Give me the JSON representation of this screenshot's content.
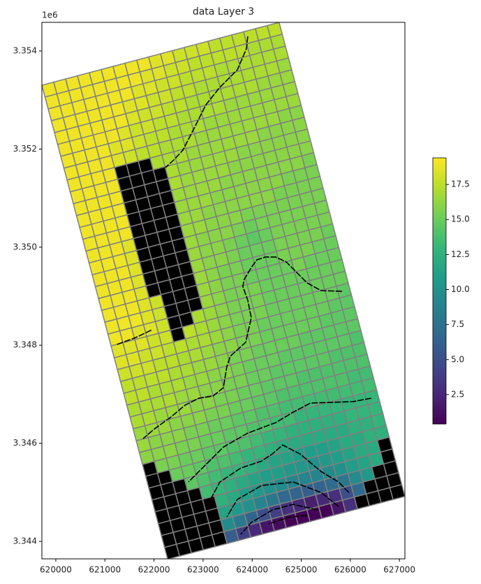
{
  "chart_data": {
    "type": "grid-map",
    "title": "data Layer 3",
    "y_offset_label": "1e6",
    "colormap": "viridis",
    "clim": [
      0.4,
      19.4
    ],
    "cell_edge_color": "#808080",
    "inactive_color": "#000000",
    "line_color": "#000000",
    "xlim": [
      619716,
      627112
    ],
    "ylim": [
      3343644,
      3354584
    ],
    "xticks": [
      620000,
      621000,
      622000,
      623000,
      624000,
      625000,
      626000,
      627000
    ],
    "yticks": [
      {
        "value": 3344000,
        "label": "3.344"
      },
      {
        "value": 3346000,
        "label": "3.346"
      },
      {
        "value": 3348000,
        "label": "3.348"
      },
      {
        "value": 3350000,
        "label": "3.350"
      },
      {
        "value": 3352000,
        "label": "3.352"
      },
      {
        "value": 3354000,
        "label": "3.354"
      }
    ],
    "colorbar_ticks": [
      2.5,
      {
        "value": 5,
        "label": "5.0"
      },
      7.5,
      {
        "value": 10,
        "label": "10.0"
      },
      12.5,
      {
        "value": 15,
        "label": "15.0"
      },
      17.5
    ],
    "model_grid": {
      "origin": [
        619716,
        3353302
      ],
      "angle": 14.85,
      "cell_size": 250
    },
    "values": [
      [
        19,
        19,
        19,
        19,
        19,
        19,
        19,
        19,
        19,
        18.5,
        18.5,
        18,
        18,
        18,
        17.5,
        17.5,
        17.5,
        17.5,
        17.5,
        17.5
      ],
      [
        19,
        19,
        19,
        19,
        19,
        19,
        19,
        19,
        18.5,
        18.5,
        18,
        18,
        17.5,
        17.5,
        17.5,
        17.5,
        17.5,
        17,
        17,
        17
      ],
      [
        19,
        19,
        19,
        19,
        19,
        19,
        19,
        18.5,
        18.5,
        18,
        18,
        17.5,
        17.5,
        17.5,
        17,
        17,
        17,
        17,
        17,
        17
      ],
      [
        19,
        19,
        19,
        19,
        19,
        19,
        18.5,
        18.5,
        18,
        18,
        17.5,
        17.5,
        17,
        17,
        17,
        17,
        17,
        17,
        17,
        16.5
      ],
      [
        19,
        19,
        19,
        19,
        19,
        19,
        18.5,
        18,
        18,
        17.5,
        17.5,
        17,
        17,
        17,
        17,
        17,
        17,
        16.5,
        16.5,
        16.5
      ],
      [
        19,
        19,
        19,
        19,
        19,
        18.5,
        18,
        18,
        17.5,
        17.5,
        17,
        17,
        17,
        17,
        16.5,
        16.5,
        16.5,
        16.5,
        16.5,
        16.5
      ],
      [
        19,
        19,
        19,
        19,
        18.5,
        18.5,
        18,
        17.5,
        17.5,
        17,
        17,
        17,
        16.5,
        16.5,
        16.5,
        16.5,
        16.5,
        16.5,
        16.5,
        16.5
      ],
      [
        19,
        19,
        19,
        19,
        18.5,
        18,
        17.5,
        17.5,
        17,
        17,
        17,
        16.5,
        16.5,
        16.5,
        16.5,
        16.5,
        16.5,
        16.5,
        16,
        16
      ],
      [
        19,
        19,
        19,
        19,
        null,
        null,
        null,
        17,
        17,
        17,
        16.5,
        16.5,
        16.5,
        16.5,
        16.5,
        16.5,
        16,
        16,
        16,
        16
      ],
      [
        19,
        19,
        19,
        19,
        null,
        null,
        null,
        null,
        17,
        16.5,
        16.5,
        16.5,
        16.5,
        16.5,
        16,
        16,
        16,
        16,
        16,
        16
      ],
      [
        19,
        19,
        19,
        19,
        null,
        null,
        null,
        null,
        17,
        16.5,
        16.5,
        16.5,
        16.5,
        16,
        16,
        16,
        16,
        16,
        16,
        16
      ],
      [
        19,
        19,
        19,
        19,
        null,
        null,
        null,
        null,
        16.5,
        16.5,
        16.5,
        16.5,
        16,
        16,
        16,
        16,
        16,
        16,
        16,
        15.5
      ],
      [
        19,
        19,
        19,
        19,
        null,
        null,
        null,
        null,
        16.5,
        16.5,
        16.5,
        16,
        16,
        16,
        16,
        16,
        16,
        15.5,
        15.5,
        15.5
      ],
      [
        19,
        19,
        19,
        19,
        null,
        null,
        null,
        null,
        16.5,
        16.5,
        16,
        16,
        16,
        16,
        16,
        16,
        15.5,
        15.5,
        15.5,
        15.5
      ],
      [
        19,
        19,
        19,
        18.5,
        null,
        null,
        null,
        null,
        16.5,
        16.5,
        16,
        16,
        16,
        15.5,
        15.5,
        15.5,
        15.5,
        15.5,
        15.5,
        15.5
      ],
      [
        19,
        19,
        19,
        18.5,
        null,
        null,
        null,
        null,
        16.5,
        16,
        16,
        16,
        15.5,
        15,
        15.5,
        15.5,
        15.5,
        15.5,
        15.5,
        15.5
      ],
      [
        19,
        19,
        19,
        18.5,
        null,
        null,
        null,
        null,
        16.5,
        16,
        16,
        15.5,
        15,
        14.5,
        15,
        15.5,
        15.5,
        15.5,
        15.5,
        15.5
      ],
      [
        19,
        19,
        19,
        18.5,
        null,
        null,
        null,
        null,
        16.5,
        16,
        16,
        15.5,
        15,
        15,
        15,
        15.5,
        15.5,
        15.5,
        15.5,
        15
      ],
      [
        19,
        19,
        19,
        18.5,
        null,
        null,
        null,
        null,
        16.5,
        16,
        15.5,
        15.5,
        15,
        15,
        15,
        15.5,
        15.5,
        15.5,
        15,
        15
      ],
      [
        19,
        19,
        19,
        18.5,
        18,
        null,
        null,
        null,
        16.5,
        16,
        15.5,
        15.5,
        15,
        15,
        15,
        15,
        15.5,
        15,
        15,
        15
      ],
      [
        19,
        19,
        19,
        18.5,
        18,
        null,
        null,
        null,
        16.5,
        16,
        15.5,
        15.5,
        15.5,
        15,
        15,
        15,
        15,
        15,
        15,
        15
      ],
      [
        19,
        19,
        18.5,
        18.5,
        18,
        null,
        null,
        17,
        16.5,
        16,
        15.5,
        15.5,
        15.5,
        15,
        15,
        15,
        15,
        15,
        15,
        15
      ],
      [
        18.5,
        18.5,
        18.5,
        18,
        18,
        null,
        17.5,
        17,
        16.5,
        16,
        15.5,
        15.5,
        15.5,
        15,
        15,
        15,
        15,
        15,
        15,
        14.5
      ],
      [
        18.5,
        18.5,
        18,
        18,
        17.5,
        17.5,
        17,
        17,
        16.5,
        16,
        15.5,
        15.5,
        15,
        15,
        15,
        15,
        15,
        15,
        14.5,
        14.5
      ],
      [
        18,
        18,
        18,
        17.5,
        17.5,
        17,
        17,
        16.5,
        16,
        16,
        15.5,
        15.5,
        15,
        15,
        15,
        15,
        15,
        14.5,
        14.5,
        14.5
      ],
      [
        17.5,
        17.5,
        17.5,
        17.5,
        17,
        17,
        16.5,
        16.5,
        16,
        15.5,
        15.5,
        15,
        15,
        15,
        15,
        14.5,
        14.5,
        14.5,
        14.5,
        14.5
      ],
      [
        17.5,
        17.5,
        17,
        17,
        17,
        16.5,
        16.5,
        16,
        16,
        15.5,
        15,
        15,
        15,
        14.5,
        14.5,
        14.5,
        14.5,
        14.5,
        14.5,
        14
      ],
      [
        17,
        17,
        17,
        17,
        16.5,
        16.5,
        16,
        16,
        15.5,
        15.5,
        15,
        15,
        14.5,
        14.5,
        14.5,
        14.5,
        14.5,
        14,
        14,
        14
      ],
      [
        17,
        17,
        16.5,
        16.5,
        16.5,
        16,
        16,
        15.5,
        15.5,
        15,
        15,
        14.5,
        14.5,
        14.5,
        14,
        14,
        14,
        14,
        14,
        14
      ],
      [
        16.5,
        16.5,
        16.5,
        16,
        16,
        16,
        15.5,
        15.5,
        15,
        15,
        14.5,
        14.5,
        14,
        14,
        14,
        14,
        14,
        14,
        13.5,
        13.5
      ],
      [
        16.5,
        16,
        16,
        16,
        15.5,
        15.5,
        15,
        15,
        14.5,
        14.5,
        14,
        14,
        13.5,
        13.5,
        13.5,
        13.5,
        13.5,
        13.5,
        13.5,
        13.5
      ],
      [
        16,
        16,
        16,
        15.5,
        15.5,
        15,
        15,
        14.5,
        14.5,
        14,
        14,
        13.5,
        13.5,
        13,
        13,
        13,
        13,
        13,
        13,
        13
      ],
      [
        null,
        15.5,
        15.5,
        15,
        15,
        14.5,
        14.5,
        14,
        14,
        13.5,
        13,
        13,
        12.5,
        12.5,
        12.5,
        12.5,
        12.5,
        13,
        13,
        13
      ],
      [
        null,
        null,
        15,
        15,
        14.5,
        14,
        14,
        13.5,
        13,
        13,
        12.5,
        12,
        12,
        12,
        12,
        12,
        12,
        12.5,
        12.5,
        13
      ],
      [
        null,
        null,
        null,
        14.5,
        14,
        13.5,
        13,
        13,
        12.5,
        12,
        11.5,
        11.5,
        11,
        11,
        11,
        11.5,
        12,
        12,
        12.5,
        12.5
      ],
      [
        null,
        null,
        null,
        null,
        13.5,
        13,
        12.5,
        12,
        11.5,
        11,
        11,
        10.5,
        10.5,
        10,
        10.5,
        11,
        11.5,
        12,
        12,
        null
      ],
      [
        null,
        null,
        null,
        null,
        null,
        12.5,
        12,
        11,
        10.5,
        10,
        9.5,
        9,
        9,
        9,
        9.5,
        10,
        11,
        11.5,
        12,
        null
      ],
      [
        null,
        null,
        null,
        null,
        null,
        11.5,
        10.5,
        10,
        9,
        8,
        7,
        6.5,
        6,
        6.5,
        7,
        8,
        9.5,
        10.5,
        null,
        null
      ],
      [
        null,
        null,
        null,
        null,
        null,
        9.5,
        8,
        6.5,
        5,
        4,
        3,
        2.5,
        2,
        2.5,
        3,
        5,
        7,
        null,
        null,
        null
      ],
      [
        null,
        null,
        null,
        null,
        null,
        6,
        4,
        2.5,
        1.5,
        1,
        0.5,
        0.5,
        0.5,
        0.5,
        1.5,
        3,
        null,
        null,
        null,
        null
      ]
    ],
    "lines": [
      {
        "x": [
          623911,
          623882,
          623697,
          623342,
          623057,
          622844,
          622588,
          622417,
          622233
        ],
        "y": [
          3354299,
          3354043,
          3353615,
          3353259,
          3352903,
          3352476,
          3351977,
          3351792,
          3351621
        ]
      },
      {
        "x": [
          621251,
          621635,
          621962
        ],
        "y": [
          3348017,
          3348160,
          3348316
        ]
      },
      {
        "x": [
          625830,
          625404,
          625119,
          624906,
          624693,
          624479,
          624266,
          624095,
          623982,
          623839,
          623810,
          623911,
          623982,
          623868,
          623555,
          623484,
          623413,
          623200,
          622915,
          622631,
          622346,
          621991,
          621778
        ],
        "y": [
          3349100,
          3349114,
          3349271,
          3349485,
          3349699,
          3349798,
          3349798,
          3349741,
          3349585,
          3349343,
          3349200,
          3348916,
          3348559,
          3348060,
          3347776,
          3347562,
          3347134,
          3346963,
          3346920,
          3346778,
          3346536,
          3346280,
          3346095
        ]
      },
      {
        "x": [
          626427,
          626044,
          625190,
          624835,
          624479,
          623911,
          623413,
          623128,
          622915,
          622702
        ],
        "y": [
          3346920,
          3346849,
          3346821,
          3346635,
          3346422,
          3346208,
          3345923,
          3345638,
          3345425,
          3345211
        ]
      },
      {
        "x": [
          625972,
          625759,
          625404,
          624977,
          624622,
          624408,
          624195,
          623768,
          623342,
          623128
        ],
        "y": [
          3344997,
          3345211,
          3345425,
          3345781,
          3345966,
          3345781,
          3345638,
          3345496,
          3345211,
          3344812
        ]
      },
      {
        "x": [
          625759,
          625404,
          624835,
          624195,
          623697,
          623484
        ],
        "y": [
          3344712,
          3344997,
          3345211,
          3345140,
          3344855,
          3344499
        ]
      },
      {
        "x": [
          625333,
          624835,
          624408,
          623982,
          623768
        ],
        "y": [
          3344641,
          3344755,
          3344641,
          3344385,
          3344143
        ]
      },
      {
        "x": [
          625119,
          624764,
          624337
        ],
        "y": [
          3344528,
          3344499,
          3344357
        ]
      }
    ]
  }
}
